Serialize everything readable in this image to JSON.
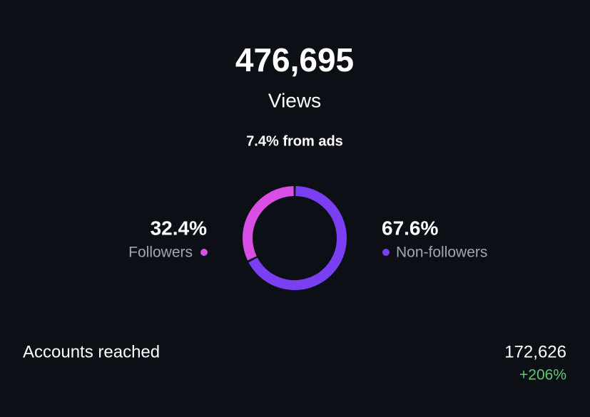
{
  "header": {
    "value": "476,695",
    "label": "Views",
    "ads_note": "7.4% from ads"
  },
  "donut": {
    "segments": [
      {
        "name": "Followers",
        "value": 32.4,
        "label": "32.4%",
        "color": "#d94fe6"
      },
      {
        "name": "Non-followers",
        "value": 67.6,
        "label": "67.6%",
        "color": "#7a3ff3"
      }
    ]
  },
  "accounts_reached": {
    "label": "Accounts reached",
    "value": "172,626",
    "change": "+206%"
  }
}
